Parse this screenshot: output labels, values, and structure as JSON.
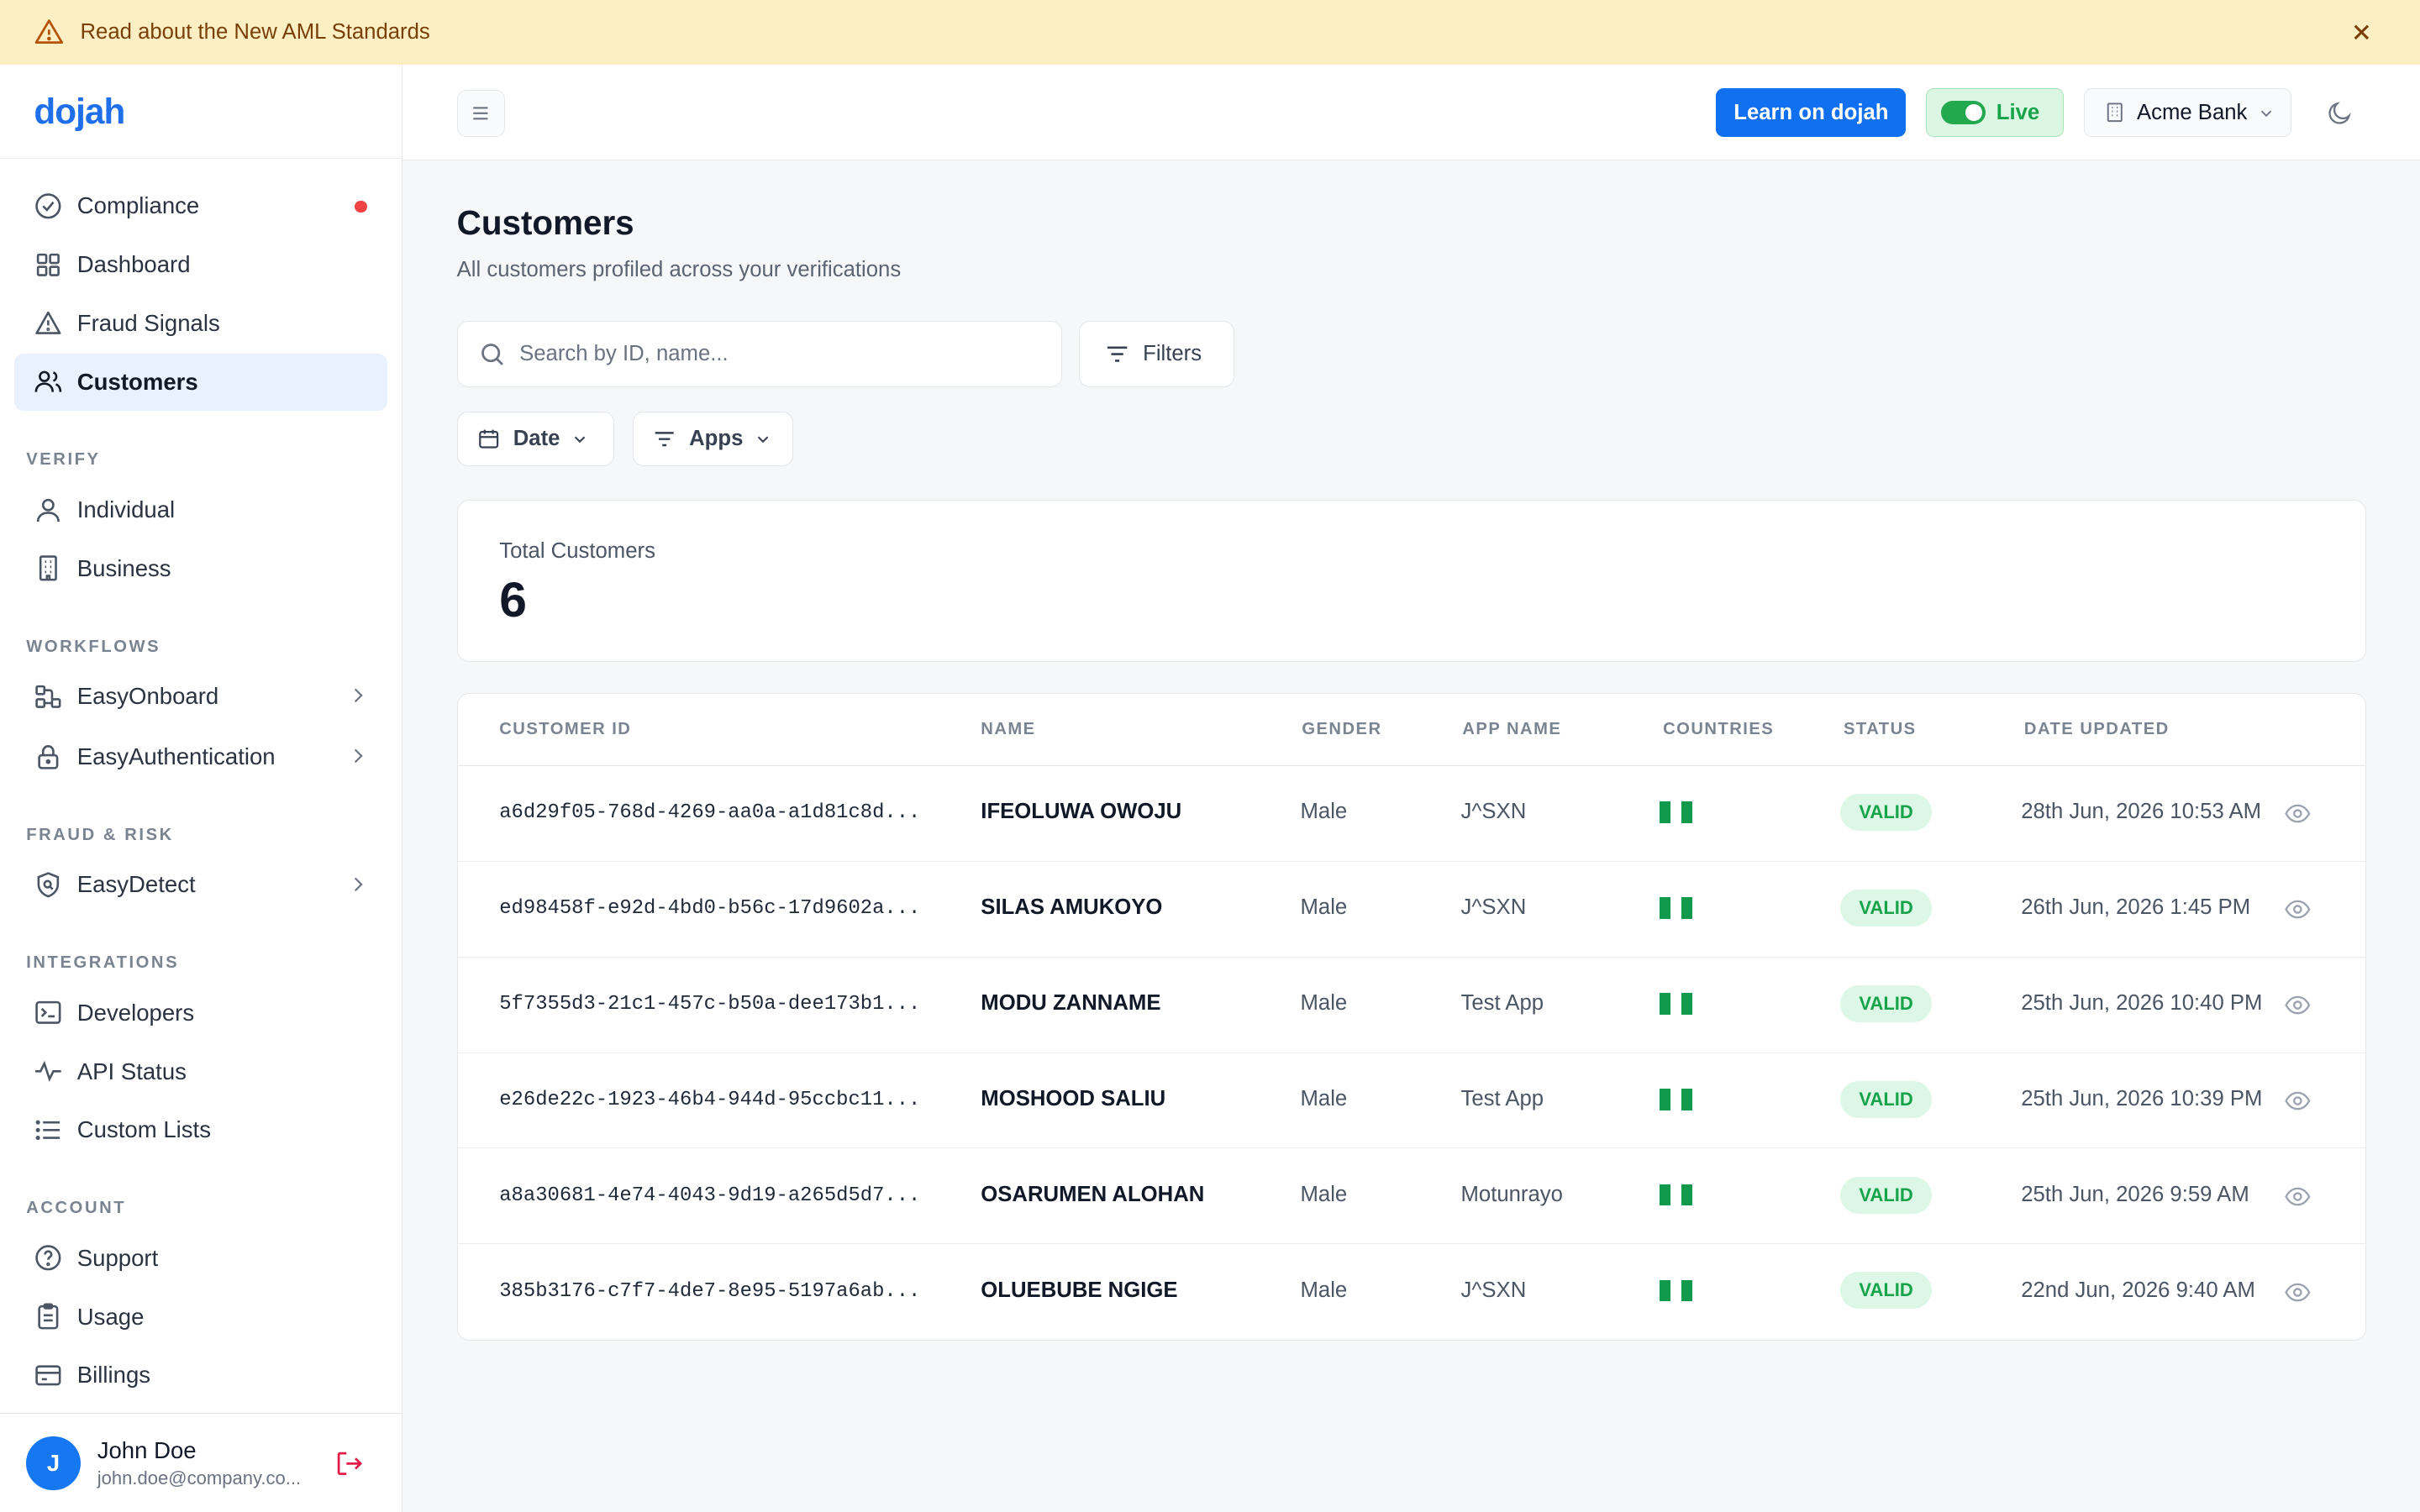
{
  "banner": {
    "text": "Read about the New AML Standards",
    "icon": "warning-icon"
  },
  "brand": {
    "logo": "dojah"
  },
  "sidebar": {
    "items": [
      {
        "label": "Compliance",
        "icon": "check-circle-icon"
      },
      {
        "label": "Dashboard",
        "icon": "grid-icon"
      },
      {
        "label": "Fraud Signals",
        "icon": "warning-triangle-icon"
      },
      {
        "label": "Customers",
        "icon": "users-icon"
      }
    ],
    "sections": [
      {
        "label": "VERIFY",
        "items": [
          {
            "label": "Individual"
          },
          {
            "label": "Business"
          }
        ]
      },
      {
        "label": "WORKFLOWS",
        "items": [
          {
            "label": "EasyOnboard"
          },
          {
            "label": "EasyAuthentication"
          }
        ]
      },
      {
        "label": "FRAUD & RISK",
        "items": [
          {
            "label": "EasyDetect"
          }
        ]
      },
      {
        "label": "INTEGRATIONS",
        "items": [
          {
            "label": "Developers"
          },
          {
            "label": "API Status"
          },
          {
            "label": "Custom Lists"
          }
        ]
      },
      {
        "label": "ACCOUNT",
        "items": [
          {
            "label": "Support"
          },
          {
            "label": "Usage"
          },
          {
            "label": "Billings"
          }
        ]
      }
    ]
  },
  "user": {
    "initial": "J",
    "name": "John Doe",
    "email": "john.doe@company.co..."
  },
  "topbar": {
    "learn_label": "Learn on dojah",
    "live_label": "Live",
    "org_label": "Acme Bank"
  },
  "page": {
    "title": "Customers",
    "subtitle": "All customers profiled across your verifications"
  },
  "search": {
    "placeholder": "Search by ID, name...",
    "value": ""
  },
  "filters": {
    "filters_label": "Filters",
    "date_label": "Date",
    "apps_label": "Apps"
  },
  "stats": {
    "total_label": "Total Customers",
    "total_value": "6"
  },
  "table": {
    "headers": {
      "id": "CUSTOMER ID",
      "name": "NAME",
      "gender": "GENDER",
      "app": "APP NAME",
      "countries": "COUNTRIES",
      "status": "STATUS",
      "date": "DATE UPDATED"
    },
    "rows": [
      {
        "id": "a6d29f05-768d-4269-aa0a-a1d81c8d...",
        "name": "IFEOLUWA OWOJU",
        "gender": "Male",
        "app": "J^SXN",
        "status": "VALID",
        "date": "28th Jun, 2026 10:53 AM"
      },
      {
        "id": "ed98458f-e92d-4bd0-b56c-17d9602a...",
        "name": "SILAS AMUKOYO",
        "gender": "Male",
        "app": "J^SXN",
        "status": "VALID",
        "date": "26th Jun, 2026 1:45 PM"
      },
      {
        "id": "5f7355d3-21c1-457c-b50a-dee173b1...",
        "name": "MODU ZANNAME",
        "gender": "Male",
        "app": "Test App",
        "status": "VALID",
        "date": "25th Jun, 2026 10:40 PM"
      },
      {
        "id": "e26de22c-1923-46b4-944d-95ccbc11...",
        "name": "MOSHOOD SALIU",
        "gender": "Male",
        "app": "Test App",
        "status": "VALID",
        "date": "25th Jun, 2026 10:39 PM"
      },
      {
        "id": "a8a30681-4e74-4043-9d19-a265d5d7...",
        "name": "OSARUMEN ALOHAN",
        "gender": "Male",
        "app": "Motunrayo",
        "status": "VALID",
        "date": "25th Jun, 2026 9:59 AM"
      },
      {
        "id": "385b3176-c7f7-4de7-8e95-5197a6ab...",
        "name": "OLUEBUBE NGIGE",
        "gender": "Male",
        "app": "J^SXN",
        "status": "VALID",
        "date": "22nd Jun, 2026 9:40 AM"
      }
    ]
  },
  "colors": {
    "accent": "#1170f0",
    "banner": "#fcefc4",
    "valid": "#16a34a",
    "live": "#22a84f"
  }
}
